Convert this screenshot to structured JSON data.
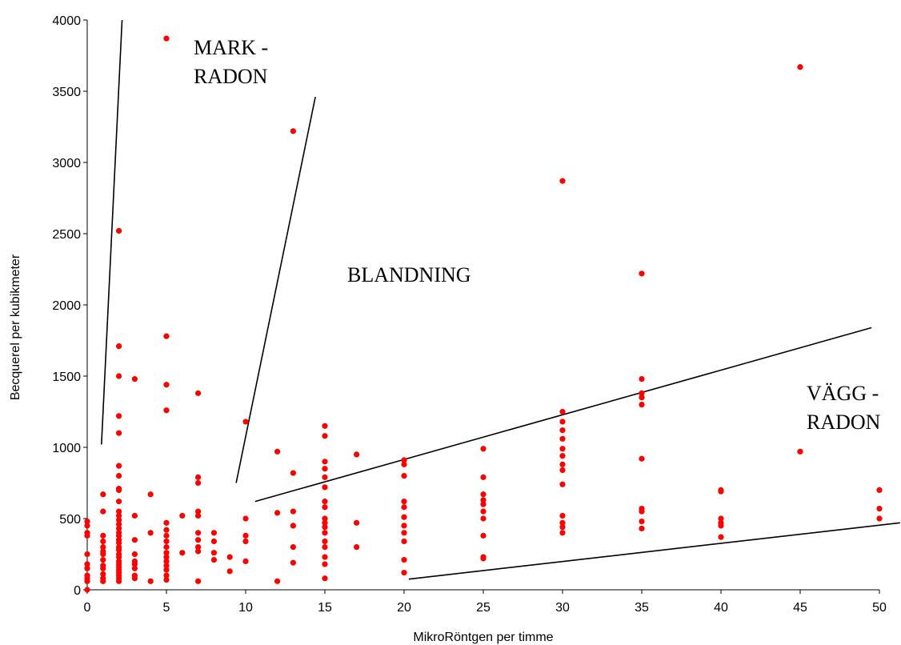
{
  "chart_data": {
    "type": "scatter",
    "xlabel": "MikroRöntgen per timme",
    "ylabel": "Becquerel per kubikmeter",
    "xlim": [
      0,
      50
    ],
    "ylim": [
      0,
      4000
    ],
    "xticks": [
      "0",
      "5",
      "10",
      "15",
      "20",
      "25",
      "30",
      "35",
      "40",
      "45",
      "50"
    ],
    "yticks": [
      "0",
      "500",
      "1000",
      "1500",
      "2000",
      "2500",
      "3000",
      "3500",
      "4000"
    ],
    "grid": false,
    "legend": "none",
    "point_color": "#ff0000",
    "annotations": [
      {
        "lines": [
          "MARK -",
          "RADON"
        ]
      },
      {
        "lines": [
          "BLANDNING"
        ]
      },
      {
        "lines": [
          "VÄGG -",
          "RADON"
        ]
      }
    ],
    "boundary_lines": [
      {
        "x": [
          0.9,
          2.2
        ],
        "y": [
          1020,
          4000
        ]
      },
      {
        "x": [
          9.4,
          14.4
        ],
        "y": [
          750,
          3460
        ]
      },
      {
        "x": [
          10.6,
          49.5
        ],
        "y": [
          620,
          1840
        ]
      },
      {
        "x": [
          20.3,
          51.3
        ],
        "y": [
          75,
          470
        ]
      }
    ],
    "points": [
      [
        0,
        480
      ],
      [
        0,
        450
      ],
      [
        0,
        400
      ],
      [
        0,
        380
      ],
      [
        0,
        250
      ],
      [
        0,
        180
      ],
      [
        0,
        150
      ],
      [
        0,
        100
      ],
      [
        0,
        80
      ],
      [
        0,
        60
      ],
      [
        0,
        0
      ],
      [
        1,
        670
      ],
      [
        1,
        550
      ],
      [
        1,
        380
      ],
      [
        1,
        340
      ],
      [
        1,
        300
      ],
      [
        1,
        270
      ],
      [
        1,
        250
      ],
      [
        1,
        210
      ],
      [
        1,
        170
      ],
      [
        1,
        150
      ],
      [
        1,
        110
      ],
      [
        1,
        80
      ],
      [
        1,
        60
      ],
      [
        2,
        2520
      ],
      [
        2,
        1710
      ],
      [
        2,
        1500
      ],
      [
        2,
        1220
      ],
      [
        2,
        1100
      ],
      [
        2,
        870
      ],
      [
        2,
        800
      ],
      [
        2,
        710
      ],
      [
        2,
        700
      ],
      [
        2,
        620
      ],
      [
        2,
        550
      ],
      [
        2,
        520
      ],
      [
        2,
        490
      ],
      [
        2,
        460
      ],
      [
        2,
        430
      ],
      [
        2,
        400
      ],
      [
        2,
        380
      ],
      [
        2,
        350
      ],
      [
        2,
        330
      ],
      [
        2,
        300
      ],
      [
        2,
        280
      ],
      [
        2,
        250
      ],
      [
        2,
        230
      ],
      [
        2,
        200
      ],
      [
        2,
        180
      ],
      [
        2,
        160
      ],
      [
        2,
        140
      ],
      [
        2,
        120
      ],
      [
        2,
        100
      ],
      [
        2,
        80
      ],
      [
        2,
        60
      ],
      [
        3,
        1480
      ],
      [
        3,
        520
      ],
      [
        3,
        350
      ],
      [
        3,
        250
      ],
      [
        3,
        200
      ],
      [
        3,
        180
      ],
      [
        3,
        150
      ],
      [
        3,
        100
      ],
      [
        3,
        80
      ],
      [
        4,
        670
      ],
      [
        4,
        400
      ],
      [
        4,
        60
      ],
      [
        5,
        3870
      ],
      [
        5,
        1780
      ],
      [
        5,
        1440
      ],
      [
        5,
        1260
      ],
      [
        5,
        470
      ],
      [
        5,
        420
      ],
      [
        5,
        380
      ],
      [
        5,
        340
      ],
      [
        5,
        300
      ],
      [
        5,
        260
      ],
      [
        5,
        230
      ],
      [
        5,
        200
      ],
      [
        5,
        170
      ],
      [
        5,
        140
      ],
      [
        5,
        100
      ],
      [
        5,
        70
      ],
      [
        6,
        520
      ],
      [
        6,
        260
      ],
      [
        7,
        1380
      ],
      [
        7,
        790
      ],
      [
        7,
        750
      ],
      [
        7,
        550
      ],
      [
        7,
        520
      ],
      [
        7,
        400
      ],
      [
        7,
        350
      ],
      [
        7,
        300
      ],
      [
        7,
        270
      ],
      [
        7,
        60
      ],
      [
        8,
        400
      ],
      [
        8,
        340
      ],
      [
        8,
        260
      ],
      [
        8,
        210
      ],
      [
        9,
        230
      ],
      [
        9,
        130
      ],
      [
        10,
        1180
      ],
      [
        10,
        500
      ],
      [
        10,
        380
      ],
      [
        10,
        340
      ],
      [
        10,
        200
      ],
      [
        12,
        970
      ],
      [
        12,
        540
      ],
      [
        12,
        60
      ],
      [
        13,
        3220
      ],
      [
        13,
        820
      ],
      [
        13,
        550
      ],
      [
        13,
        450
      ],
      [
        13,
        300
      ],
      [
        13,
        190
      ],
      [
        15,
        1150
      ],
      [
        15,
        1080
      ],
      [
        15,
        900
      ],
      [
        15,
        850
      ],
      [
        15,
        790
      ],
      [
        15,
        720
      ],
      [
        15,
        620
      ],
      [
        15,
        580
      ],
      [
        15,
        500
      ],
      [
        15,
        470
      ],
      [
        15,
        440
      ],
      [
        15,
        400
      ],
      [
        15,
        340
      ],
      [
        15,
        300
      ],
      [
        15,
        230
      ],
      [
        15,
        180
      ],
      [
        15,
        80
      ],
      [
        17,
        950
      ],
      [
        17,
        470
      ],
      [
        17,
        300
      ],
      [
        20,
        910
      ],
      [
        20,
        880
      ],
      [
        20,
        800
      ],
      [
        20,
        620
      ],
      [
        20,
        580
      ],
      [
        20,
        510
      ],
      [
        20,
        450
      ],
      [
        20,
        400
      ],
      [
        20,
        340
      ],
      [
        20,
        210
      ],
      [
        20,
        120
      ],
      [
        25,
        990
      ],
      [
        25,
        790
      ],
      [
        25,
        670
      ],
      [
        25,
        630
      ],
      [
        25,
        600
      ],
      [
        25,
        550
      ],
      [
        25,
        500
      ],
      [
        25,
        380
      ],
      [
        25,
        230
      ],
      [
        25,
        220
      ],
      [
        30,
        2870
      ],
      [
        30,
        1250
      ],
      [
        30,
        1180
      ],
      [
        30,
        1120
      ],
      [
        30,
        1060
      ],
      [
        30,
        990
      ],
      [
        30,
        940
      ],
      [
        30,
        880
      ],
      [
        30,
        840
      ],
      [
        30,
        740
      ],
      [
        30,
        520
      ],
      [
        30,
        470
      ],
      [
        30,
        440
      ],
      [
        30,
        400
      ],
      [
        35,
        2220
      ],
      [
        35,
        1480
      ],
      [
        35,
        1380
      ],
      [
        35,
        1350
      ],
      [
        35,
        1300
      ],
      [
        35,
        920
      ],
      [
        35,
        570
      ],
      [
        35,
        550
      ],
      [
        35,
        480
      ],
      [
        35,
        430
      ],
      [
        40,
        700
      ],
      [
        40,
        690
      ],
      [
        40,
        500
      ],
      [
        40,
        470
      ],
      [
        40,
        450
      ],
      [
        40,
        370
      ],
      [
        45,
        3670
      ],
      [
        45,
        970
      ],
      [
        50,
        700
      ],
      [
        50,
        570
      ],
      [
        50,
        500
      ]
    ]
  }
}
